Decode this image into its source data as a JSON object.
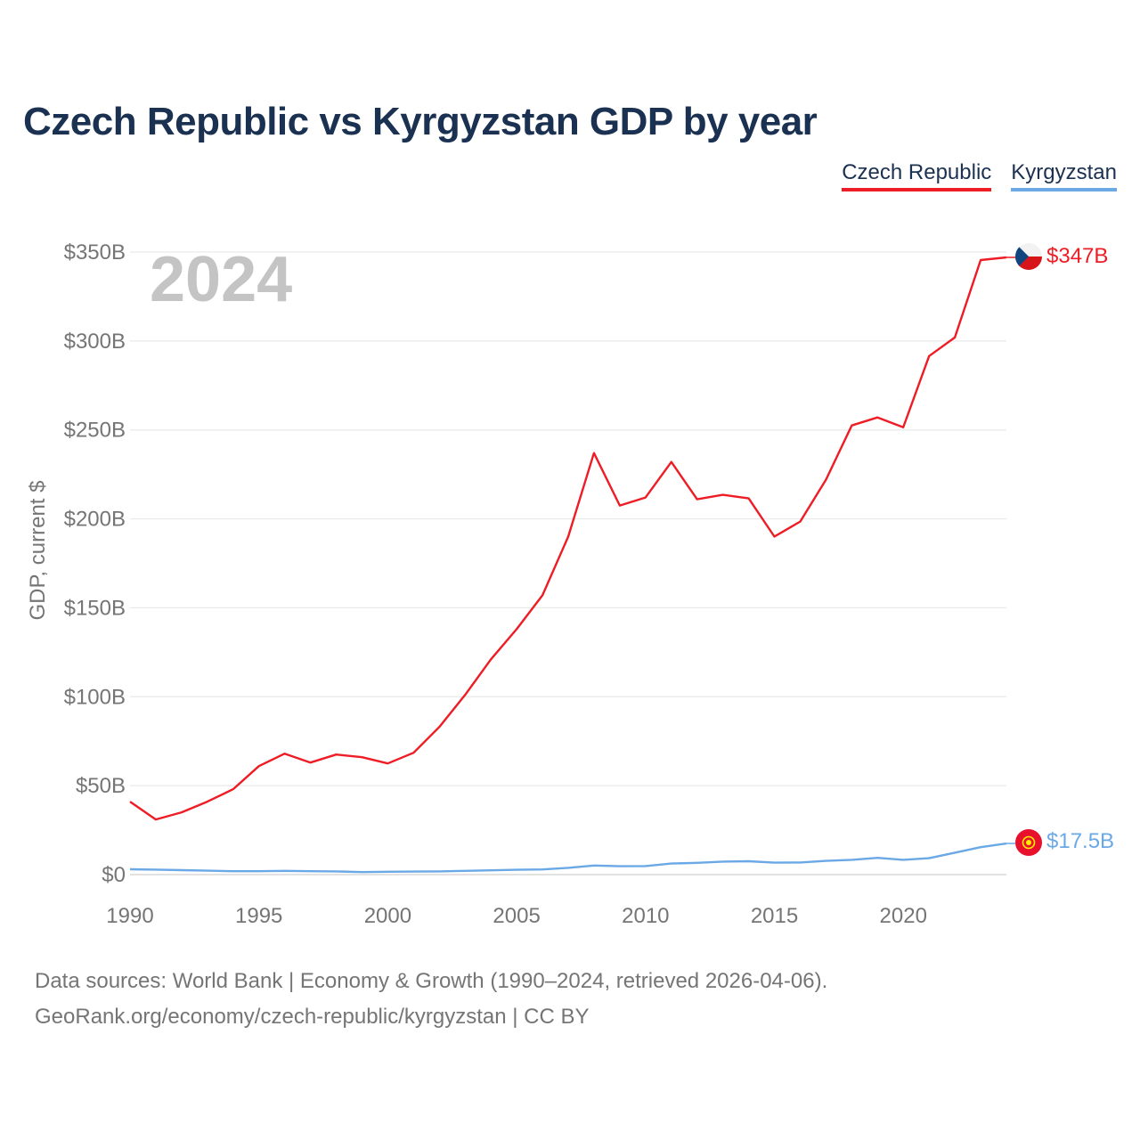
{
  "title": "Czech Republic vs Kyrgyzstan GDP by year",
  "legend": [
    {
      "label": "Czech Republic",
      "color": "#ee1c25"
    },
    {
      "label": "Kyrgyzstan",
      "color": "#6aa8e6"
    }
  ],
  "footer": {
    "line1": "Data sources: World Bank | Economy & Growth (1990–2024, retrieved 2026-04-06).",
    "line2": "GeoRank.org/economy/czech-republic/kyrgyzstan | CC BY"
  },
  "chart_data": {
    "type": "line",
    "title": "Czech Republic vs Kyrgyzstan GDP by year",
    "ylabel": "GDP, current $",
    "xlabel": "",
    "year_label": "2024",
    "ylim": [
      0,
      350
    ],
    "xlim": [
      1990,
      2024
    ],
    "y_ticks": [
      0,
      50,
      100,
      150,
      200,
      250,
      300,
      350
    ],
    "y_tick_labels": [
      "$0",
      "$50B",
      "$100B",
      "$150B",
      "$200B",
      "$250B",
      "$300B",
      "$350B"
    ],
    "x_ticks": [
      1990,
      1995,
      2000,
      2005,
      2010,
      2015,
      2020
    ],
    "x_tick_labels": [
      "1990",
      "1995",
      "2000",
      "2005",
      "2010",
      "2015",
      "2020"
    ],
    "grid": true,
    "x": [
      1990,
      1991,
      1992,
      1993,
      1994,
      1995,
      1996,
      1997,
      1998,
      1999,
      2000,
      2001,
      2002,
      2003,
      2004,
      2005,
      2006,
      2007,
      2008,
      2009,
      2010,
      2011,
      2012,
      2013,
      2014,
      2015,
      2016,
      2017,
      2018,
      2019,
      2020,
      2021,
      2022,
      2023,
      2024
    ],
    "series": [
      {
        "name": "Czech Republic",
        "color": "#ee1c25",
        "end_label": "$347B",
        "values": [
          41,
          31,
          35,
          41,
          48,
          61,
          68,
          63,
          67.5,
          66,
          62.5,
          68.5,
          83,
          101,
          121,
          138,
          157,
          190,
          237,
          207.5,
          212,
          232,
          211,
          213.5,
          211.5,
          190,
          198.5,
          222,
          252.5,
          257,
          251.5,
          291.5,
          302,
          345.5,
          347
        ]
      },
      {
        "name": "Kyrgyzstan",
        "color": "#6aa8e6",
        "end_label": "$17.5B",
        "values": [
          3,
          2.8,
          2.5,
          2.2,
          1.9,
          1.9,
          2.1,
          1.9,
          1.8,
          1.4,
          1.6,
          1.7,
          1.8,
          2.1,
          2.4,
          2.7,
          2.9,
          3.8,
          5.1,
          4.7,
          4.8,
          6.2,
          6.6,
          7.3,
          7.5,
          6.7,
          6.8,
          7.7,
          8.3,
          9.4,
          8.3,
          9.2,
          12.3,
          15.4,
          17.5
        ]
      }
    ]
  }
}
